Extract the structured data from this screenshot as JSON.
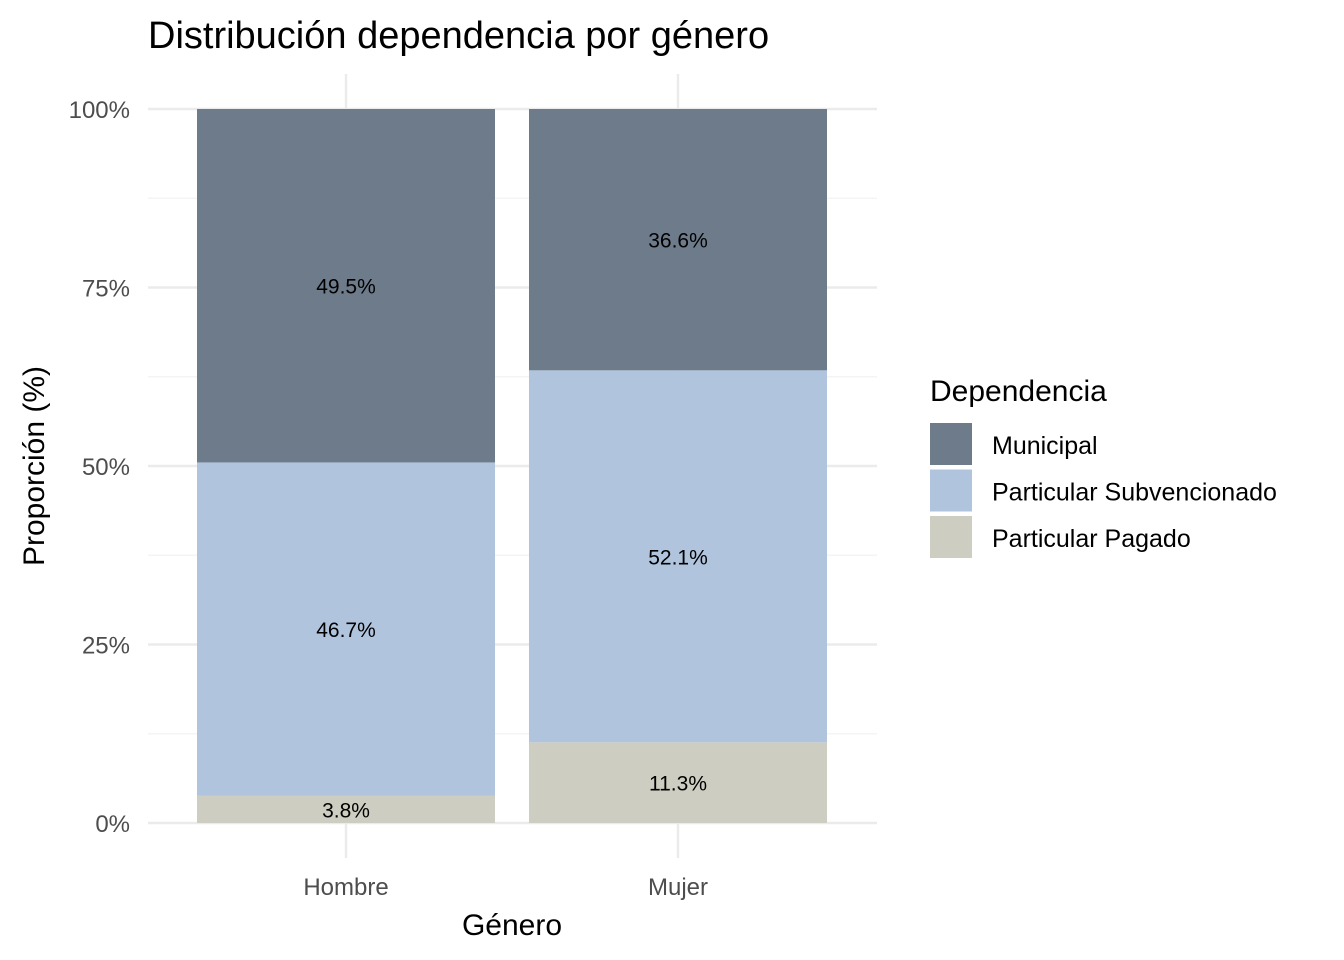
{
  "chart_data": {
    "type": "bar",
    "stacked": true,
    "title": "Distribución dependencia por género",
    "xlabel": "Género",
    "ylabel": "Proporción (%)",
    "categories": [
      "Hombre",
      "Mujer"
    ],
    "ylim": [
      0,
      100
    ],
    "yticks": [
      0,
      25,
      50,
      75,
      100
    ],
    "ytick_labels": [
      "0%",
      "25%",
      "50%",
      "75%",
      "100%"
    ],
    "grid": true,
    "legend": {
      "title": "Dependencia",
      "position": "right"
    },
    "series": [
      {
        "name": "Particular Pagado",
        "color": "#cdcdc1",
        "values": [
          3.8,
          11.3
        ],
        "labels": [
          "3.8%",
          "11.3%"
        ]
      },
      {
        "name": "Particular Subvencionado",
        "color": "#b0c4de",
        "values": [
          46.7,
          52.1
        ],
        "labels": [
          "46.7%",
          "52.1%"
        ]
      },
      {
        "name": "Municipal",
        "color": "#6e7b8b",
        "values": [
          49.5,
          36.6
        ],
        "labels": [
          "49.5%",
          "36.6%"
        ]
      }
    ],
    "legend_order": [
      "Municipal",
      "Particular Subvencionado",
      "Particular Pagado"
    ]
  }
}
